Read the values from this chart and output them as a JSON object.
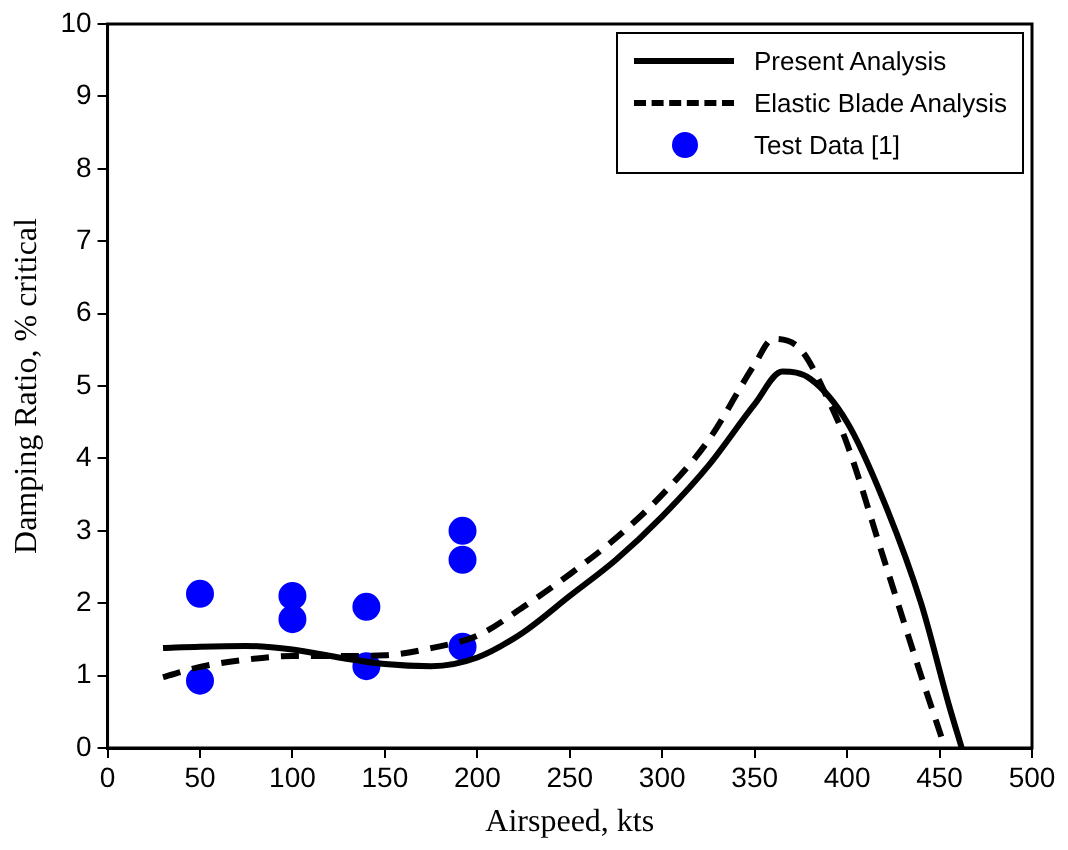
{
  "chart_data": {
    "type": "line",
    "xlabel": "Airspeed, kts",
    "ylabel": "Damping Ratio, % critical",
    "xlim": [
      0,
      500
    ],
    "xticks": [
      0,
      50,
      100,
      150,
      200,
      250,
      300,
      350,
      400,
      450,
      500
    ],
    "ylim": [
      0,
      10
    ],
    "yticks": [
      0,
      1,
      2,
      3,
      4,
      5,
      6,
      7,
      8,
      9,
      10
    ],
    "grid": false,
    "legend": "top right",
    "series": [
      {
        "name": "Present Analysis",
        "color": "#000000",
        "line_style": "solid",
        "marker": "none",
        "x": [
          30,
          50,
          75,
          100,
          125,
          150,
          175,
          200,
          225,
          250,
          275,
          300,
          325,
          350,
          365,
          380,
          400,
          420,
          440,
          455,
          462
        ],
        "values": [
          1.38,
          1.4,
          1.41,
          1.36,
          1.25,
          1.16,
          1.13,
          1.25,
          1.6,
          2.1,
          2.6,
          3.2,
          3.9,
          4.75,
          5.2,
          5.1,
          4.5,
          3.4,
          2.0,
          0.6,
          0
        ]
      },
      {
        "name": "Elastic Blade Analysis",
        "color": "#000000",
        "line_style": "dashed",
        "marker": "none",
        "x": [
          30,
          50,
          75,
          100,
          125,
          150,
          175,
          200,
          225,
          250,
          275,
          300,
          325,
          350,
          360,
          375,
          390,
          400,
          420,
          440,
          453
        ],
        "values": [
          0.98,
          1.12,
          1.22,
          1.27,
          1.27,
          1.28,
          1.38,
          1.55,
          1.95,
          2.4,
          2.9,
          3.5,
          4.25,
          5.3,
          5.65,
          5.5,
          4.8,
          4.2,
          2.6,
          1.0,
          0
        ]
      },
      {
        "name": "Test Data [1]",
        "type": "scatter",
        "color": "#0000ff",
        "marker": "circle",
        "x": [
          50,
          50,
          100,
          100,
          140,
          140,
          192,
          192,
          192
        ],
        "values": [
          2.13,
          0.93,
          2.1,
          1.78,
          1.95,
          1.13,
          3.0,
          2.6,
          1.4
        ]
      }
    ]
  }
}
